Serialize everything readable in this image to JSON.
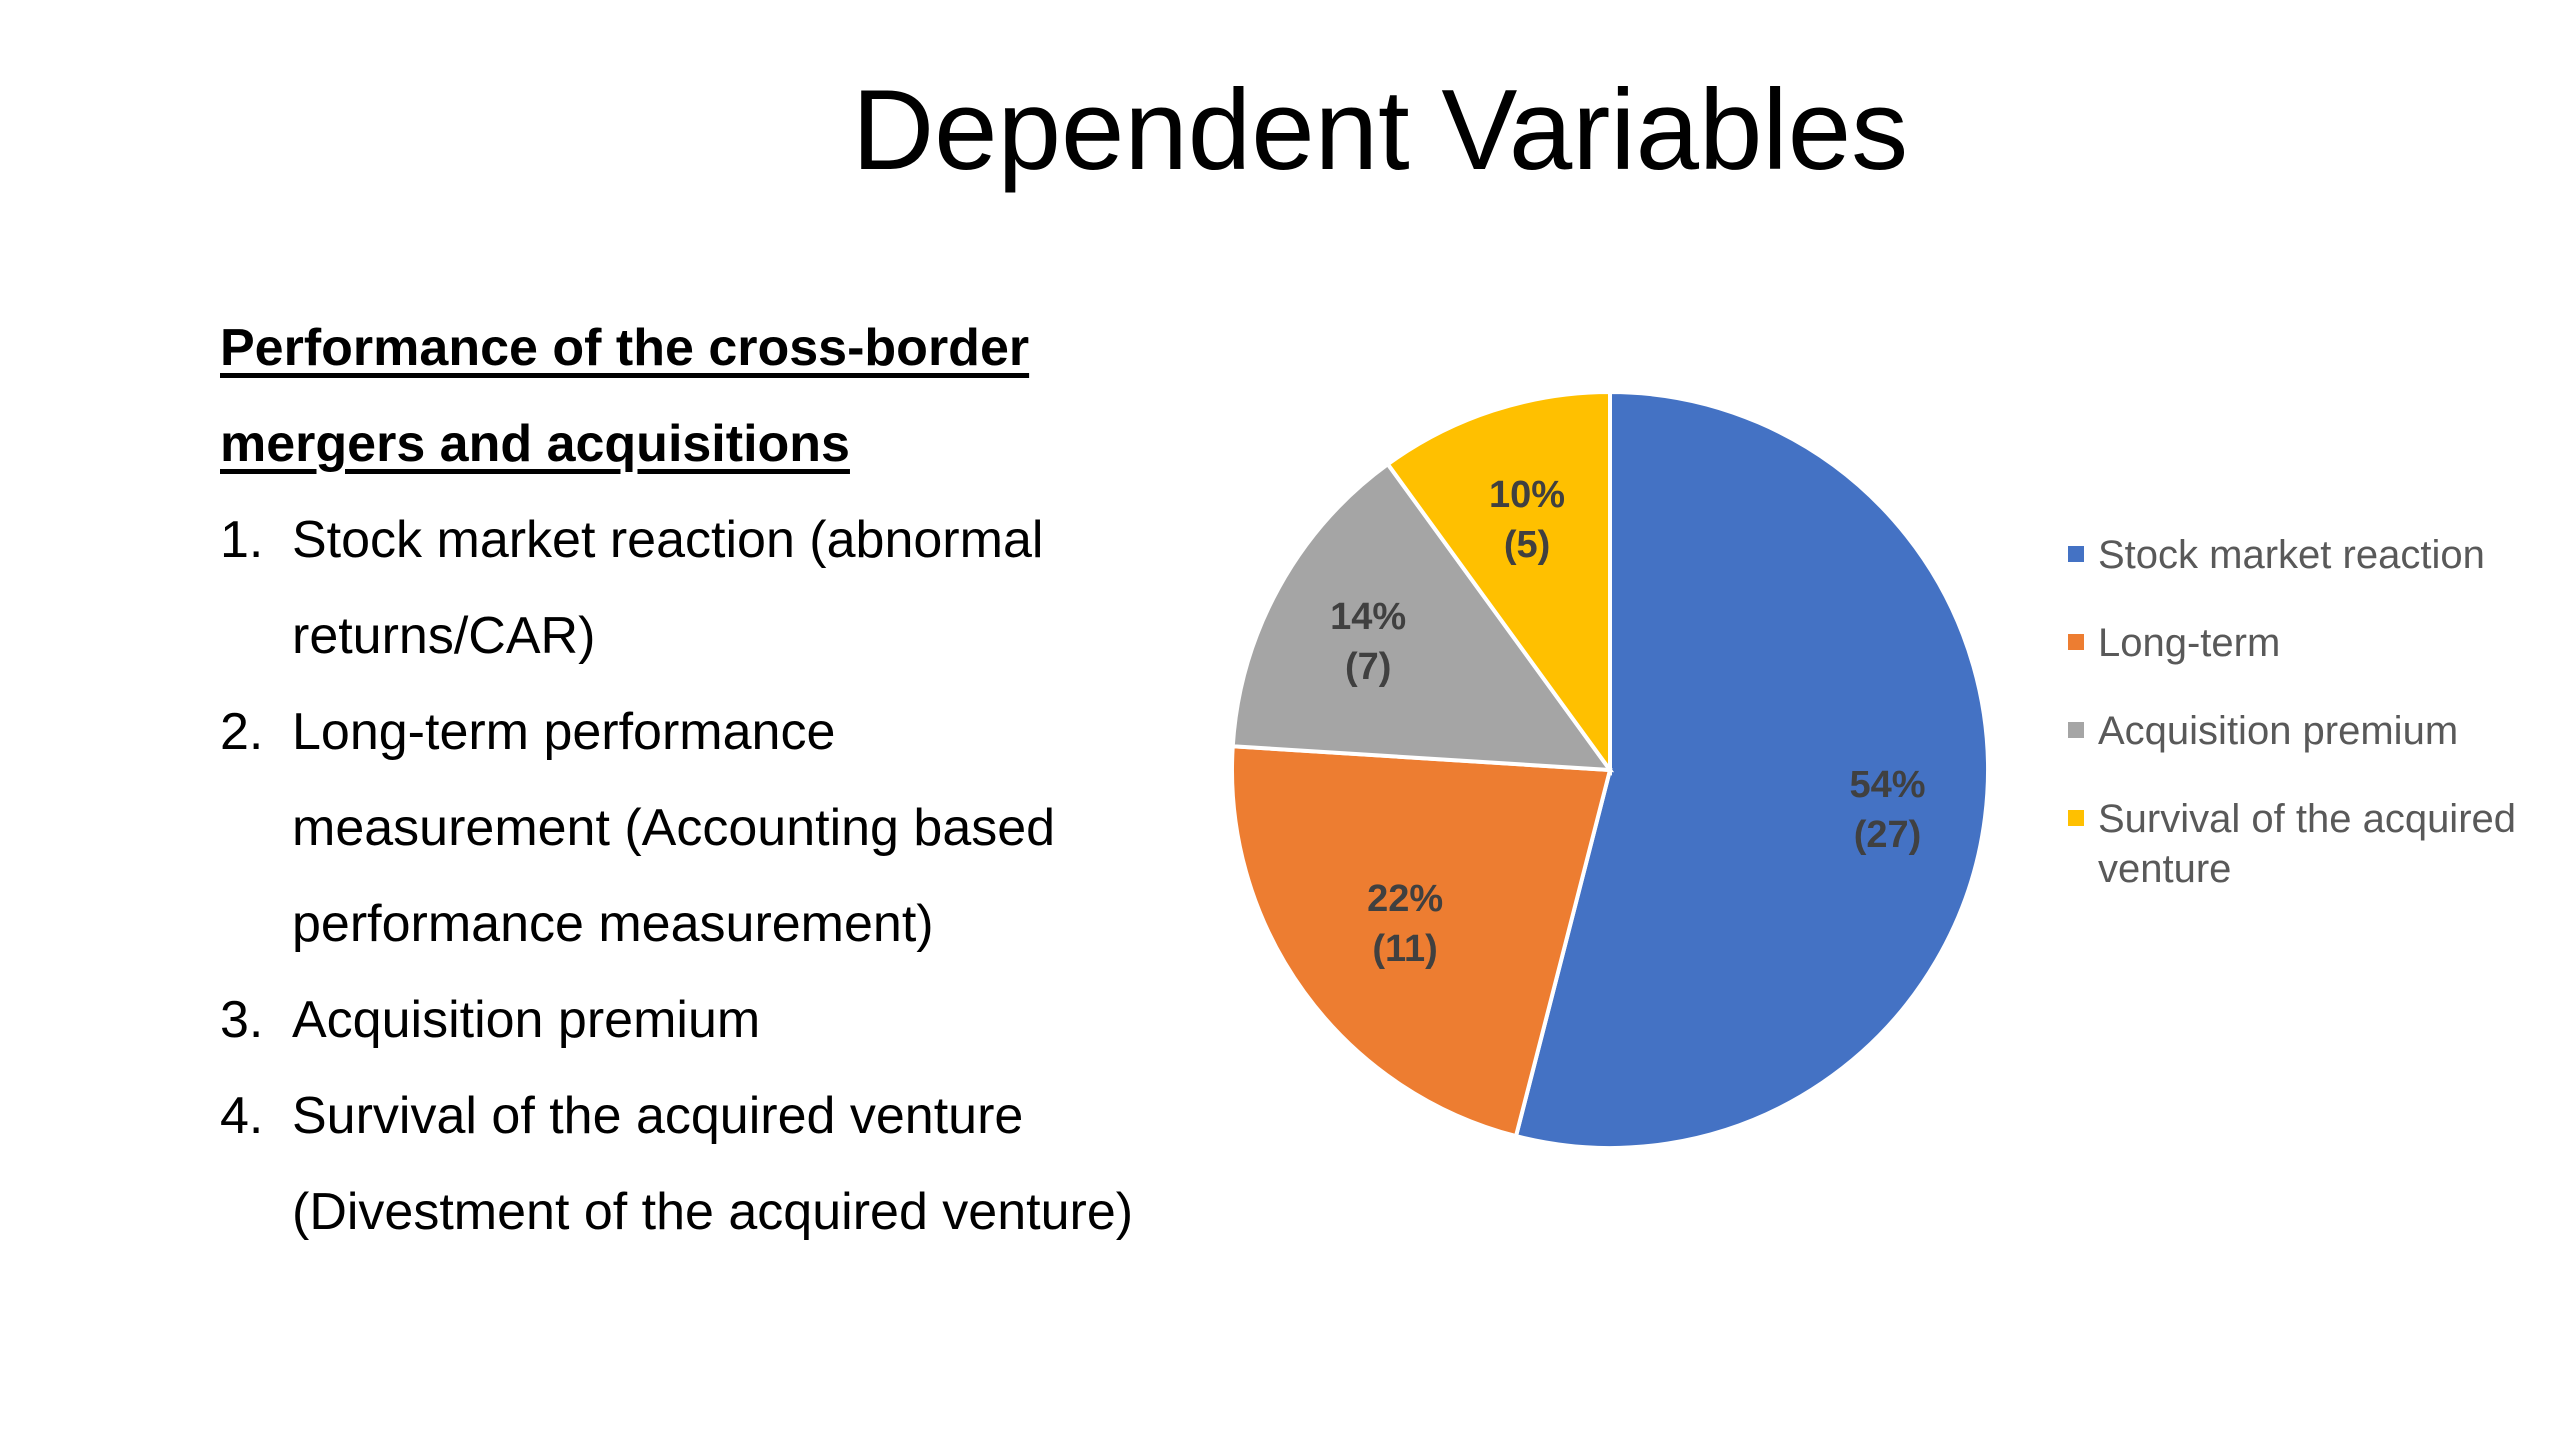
{
  "title": "Dependent Variables",
  "left_panel": {
    "heading": "Performance of the cross-border mergers and acquisitions",
    "items": [
      {
        "num": "1.",
        "text": "Stock market reaction (abnormal returns/CAR)"
      },
      {
        "num": "2.",
        "text": "Long-term performance measurement (Accounting based performance measurement)"
      },
      {
        "num": "3.",
        "text": "Acquisition premium"
      },
      {
        "num": "4.",
        "text": "Survival of the acquired venture (Divestment of the acquired venture)"
      }
    ]
  },
  "chart_data": {
    "type": "pie",
    "title": "",
    "legend_position": "right",
    "categories": [
      "Stock market reaction",
      "Long-term",
      "Acquisition premium",
      "Survival of the acquired venture"
    ],
    "values": [
      27,
      11,
      7,
      5
    ],
    "percent_labels": [
      "54%",
      "22%",
      "14%",
      "10%"
    ],
    "count_labels": [
      "(27)",
      "(11)",
      "(7)",
      "(5)"
    ],
    "colors": [
      "#4472C4",
      "#ED7D31",
      "#A5A5A5",
      "#FFC000"
    ]
  }
}
